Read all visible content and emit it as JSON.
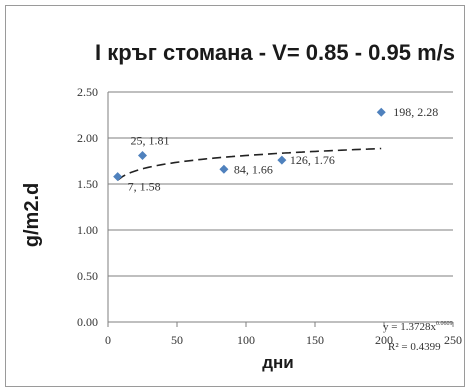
{
  "chart_data": {
    "type": "scatter",
    "title": "I кръг  стомана - V= 0.85 - 0.95 m/s",
    "xlabel": "дни",
    "ylabel": "g/m2.d",
    "xlim": [
      0,
      250
    ],
    "ylim": [
      0,
      2.5
    ],
    "x_ticks": [
      "0",
      "50",
      "100",
      "150",
      "200",
      "250"
    ],
    "y_ticks": [
      "0.00",
      "0.50",
      "1.00",
      "1.50",
      "2.00",
      "2.50"
    ],
    "grid": "horizontal",
    "marker_color": "#4f81bd",
    "points": [
      {
        "x": 7,
        "y": 1.58,
        "label": "7, 1.58"
      },
      {
        "x": 25,
        "y": 1.81,
        "label": "25, 1.81"
      },
      {
        "x": 84,
        "y": 1.66,
        "label": "84, 1.66"
      },
      {
        "x": 126,
        "y": 1.76,
        "label": "126, 1.76"
      },
      {
        "x": 198,
        "y": 2.28,
        "label": "198, 2.28"
      }
    ],
    "trendline": {
      "type": "power",
      "coefficient": 1.3728,
      "exponent": 0.06,
      "equation_base": "y = 1.3728x",
      "equation_exponent": "0.0609",
      "r_squared": "R² = 0.4399"
    }
  }
}
